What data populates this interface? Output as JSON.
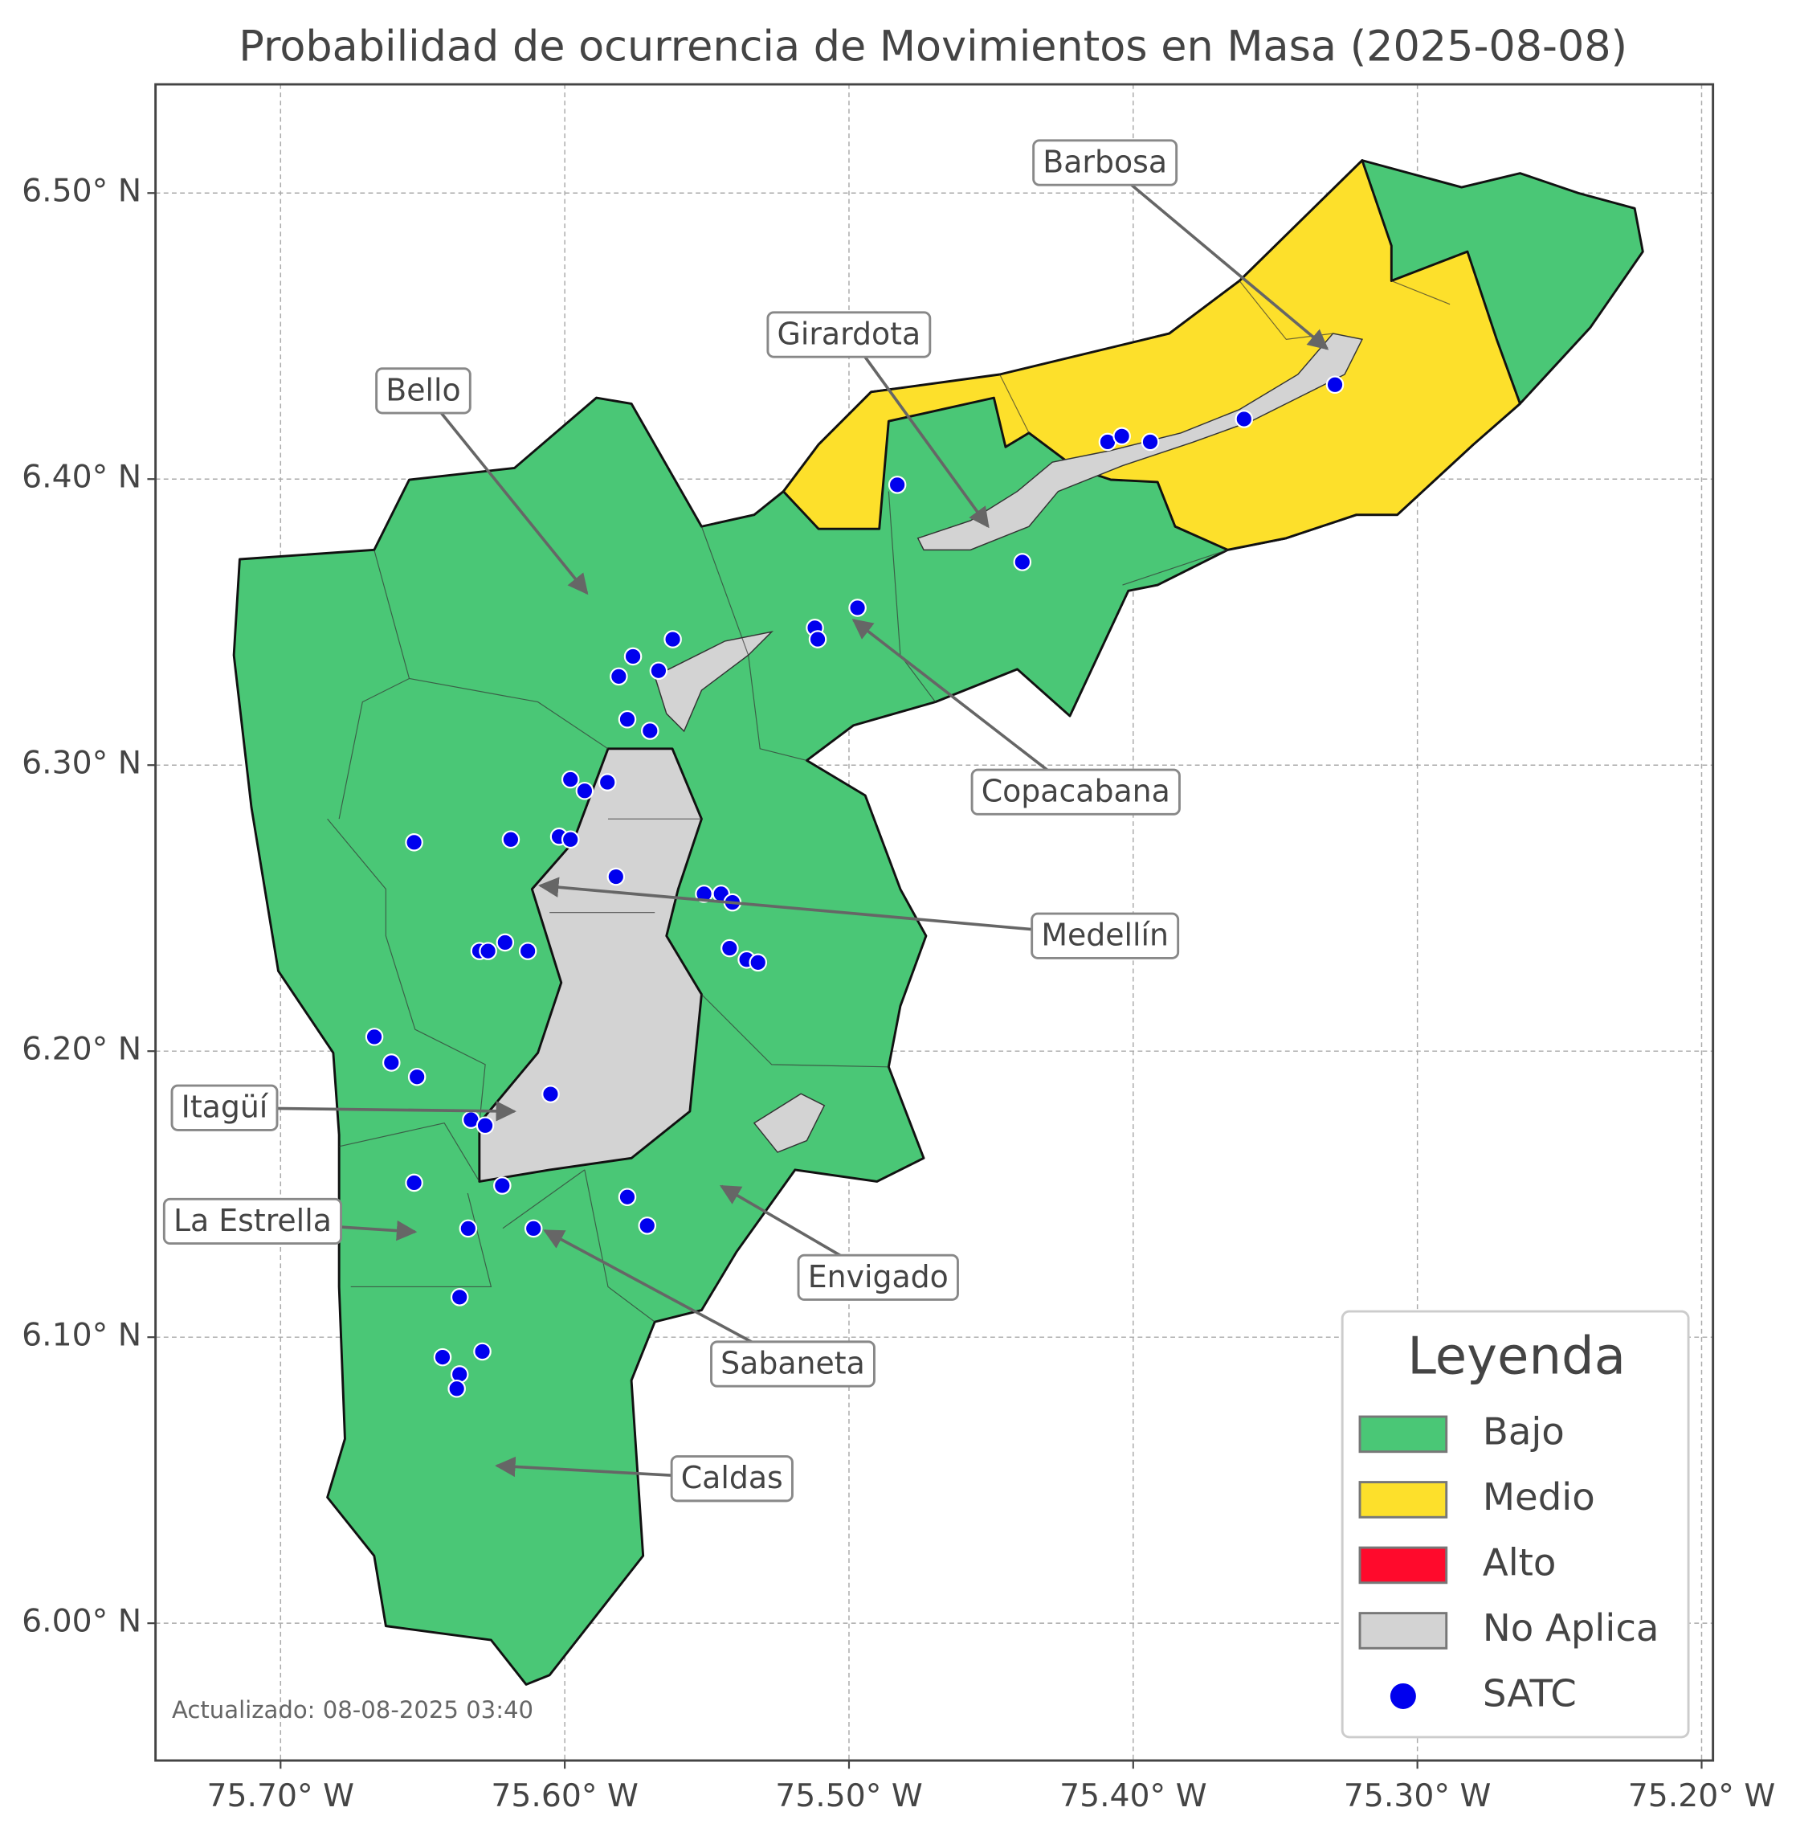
{
  "title": "Probabilidad de ocurrencia de Movimientos en Masa (2025-08-08)",
  "type": "map",
  "xlim": [
    -75.744,
    -75.196
  ],
  "ylim": [
    5.952,
    6.538
  ],
  "xticks": [
    {
      "value": -75.7,
      "label": "75.70° W"
    },
    {
      "value": -75.6,
      "label": "75.60° W"
    },
    {
      "value": -75.5,
      "label": "75.50° W"
    },
    {
      "value": -75.4,
      "label": "75.40° W"
    },
    {
      "value": -75.3,
      "label": "75.30° W"
    },
    {
      "value": -75.2,
      "label": "75.20° W"
    }
  ],
  "yticks": [
    {
      "value": 6.0,
      "label": "6.00° N"
    },
    {
      "value": 6.1,
      "label": "6.10° N"
    },
    {
      "value": 6.2,
      "label": "6.20° N"
    },
    {
      "value": 6.3,
      "label": "6.30° N"
    },
    {
      "value": 6.4,
      "label": "6.40° N"
    },
    {
      "value": 6.5,
      "label": "6.50° N"
    }
  ],
  "grid": true,
  "legend": {
    "title": "Leyenda",
    "categories": [
      {
        "label": "Bajo",
        "color": "#4ac776"
      },
      {
        "label": "Medio",
        "color": "#fde02b"
      },
      {
        "label": "Alto",
        "color": "#ff0a2c"
      },
      {
        "label": "No Aplica",
        "color": "#d3d3d3"
      }
    ]
  },
  "points": {
    "name": "SATC",
    "color": "#0000ee",
    "lon": [
      -75.483,
      -75.409,
      -75.404,
      -75.394,
      -75.361,
      -75.329,
      -75.439,
      -75.497,
      -75.512,
      -75.511,
      -75.562,
      -75.576,
      -75.567,
      -75.581,
      -75.578,
      -75.57,
      -75.598,
      -75.593,
      -75.585,
      -75.653,
      -75.619,
      -75.602,
      -75.598,
      -75.582,
      -75.551,
      -75.545,
      -75.541,
      -75.621,
      -75.63,
      -75.627,
      -75.613,
      -75.542,
      -75.536,
      -75.532,
      -75.667,
      -75.661,
      -75.652,
      -75.605,
      -75.633,
      -75.628,
      -75.653,
      -75.622,
      -75.578,
      -75.571,
      -75.634,
      -75.611,
      -75.637,
      -75.643,
      -75.629,
      -75.637,
      -75.638
    ],
    "lat": [
      6.398,
      6.413,
      6.415,
      6.413,
      6.421,
      6.433,
      6.371,
      6.355,
      6.348,
      6.344,
      6.344,
      6.338,
      6.333,
      6.331,
      6.316,
      6.312,
      6.295,
      6.291,
      6.294,
      6.273,
      6.274,
      6.275,
      6.274,
      6.261,
      6.255,
      6.255,
      6.252,
      6.238,
      6.235,
      6.235,
      6.235,
      6.236,
      6.232,
      6.231,
      6.205,
      6.196,
      6.191,
      6.185,
      6.176,
      6.174,
      6.154,
      6.153,
      6.149,
      6.139,
      6.138,
      6.138,
      6.114,
      6.093,
      6.095,
      6.087,
      6.082
    ]
  },
  "annotations": [
    "Barbosa",
    "Girardota",
    "Bello",
    "Copacabana",
    "Medellín",
    "Itagüí",
    "La Estrella",
    "Envigado",
    "Sabaneta",
    "Caldas"
  ],
  "footer": "Actualizado: 08-08-2025 03:40"
}
